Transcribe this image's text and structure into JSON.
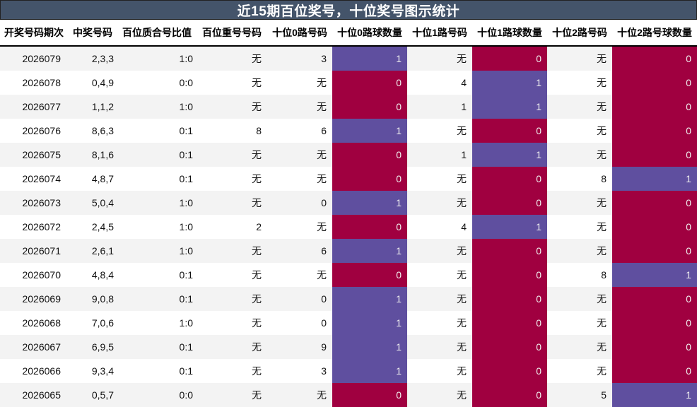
{
  "title": "近15期百位奖号，十位奖号图示统计",
  "colors": {
    "title_bg": "#44546a",
    "hit": "#5f4f9f",
    "miss": "#a00040",
    "stripe": "#f3f3f3"
  },
  "columns": [
    "开奖号码期次",
    "中奖号码",
    "百位质合号比值",
    "百位重号号码",
    "十位0路号码",
    "十位0路球数量",
    "十位1路号码",
    "十位1路球数量",
    "十位2路号码",
    "十位2路号球数量"
  ],
  "rows": [
    [
      "2026079",
      "2,3,3",
      "1:0",
      "无",
      "3",
      "1",
      "无",
      "0",
      "无",
      "0"
    ],
    [
      "2026078",
      "0,4,9",
      "0:0",
      "无",
      "无",
      "0",
      "4",
      "1",
      "无",
      "0"
    ],
    [
      "2026077",
      "1,1,2",
      "1:0",
      "无",
      "无",
      "0",
      "1",
      "1",
      "无",
      "0"
    ],
    [
      "2026076",
      "8,6,3",
      "0:1",
      "8",
      "6",
      "1",
      "无",
      "0",
      "无",
      "0"
    ],
    [
      "2026075",
      "8,1,6",
      "0:1",
      "无",
      "无",
      "0",
      "1",
      "1",
      "无",
      "0"
    ],
    [
      "2026074",
      "4,8,7",
      "0:1",
      "无",
      "无",
      "0",
      "无",
      "0",
      "8",
      "1"
    ],
    [
      "2026073",
      "5,0,4",
      "1:0",
      "无",
      "0",
      "1",
      "无",
      "0",
      "无",
      "0"
    ],
    [
      "2026072",
      "2,4,5",
      "1:0",
      "2",
      "无",
      "0",
      "4",
      "1",
      "无",
      "0"
    ],
    [
      "2026071",
      "2,6,1",
      "1:0",
      "无",
      "6",
      "1",
      "无",
      "0",
      "无",
      "0"
    ],
    [
      "2026070",
      "4,8,4",
      "0:1",
      "无",
      "无",
      "0",
      "无",
      "0",
      "8",
      "1"
    ],
    [
      "2026069",
      "9,0,8",
      "0:1",
      "无",
      "0",
      "1",
      "无",
      "0",
      "无",
      "0"
    ],
    [
      "2026068",
      "7,0,6",
      "1:0",
      "无",
      "0",
      "1",
      "无",
      "0",
      "无",
      "0"
    ],
    [
      "2026067",
      "6,9,5",
      "0:1",
      "无",
      "9",
      "1",
      "无",
      "0",
      "无",
      "0"
    ],
    [
      "2026066",
      "9,3,4",
      "0:1",
      "无",
      "3",
      "1",
      "无",
      "0",
      "无",
      "0"
    ],
    [
      "2026065",
      "0,5,7",
      "0:0",
      "无",
      "无",
      "0",
      "无",
      "0",
      "5",
      "1"
    ]
  ]
}
